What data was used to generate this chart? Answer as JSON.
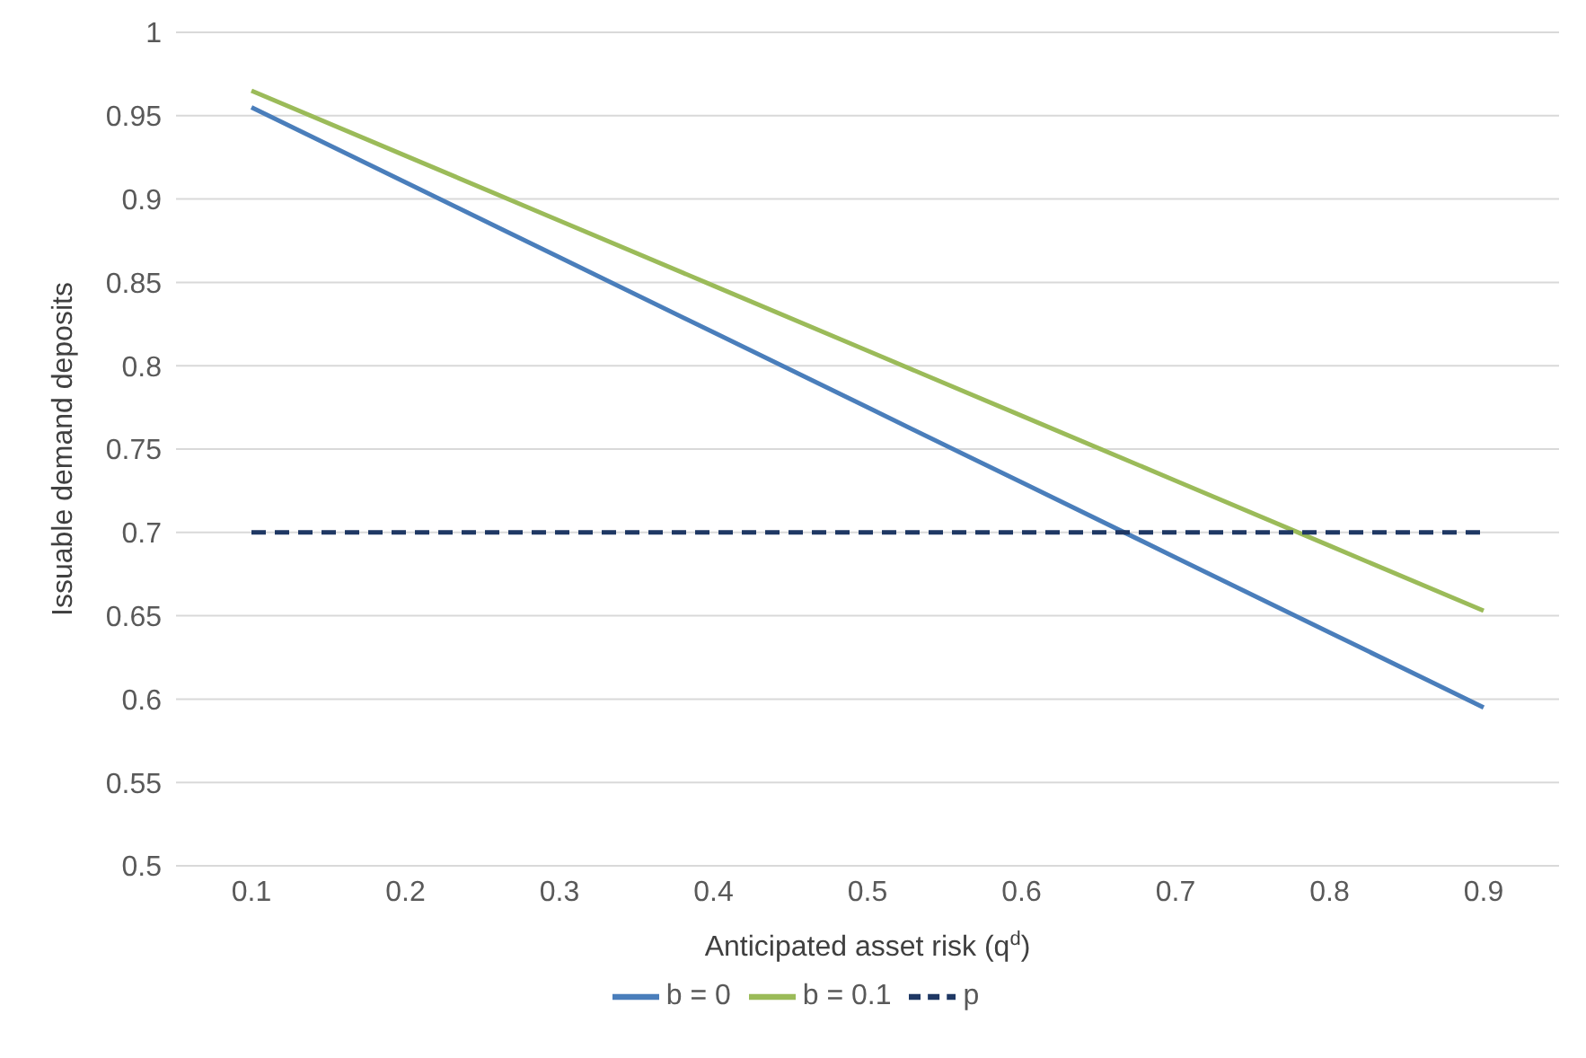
{
  "chart_data": {
    "type": "line",
    "xlabel": "Anticipated asset risk (q$^{d}$)",
    "ylabel": "Issuable demand deposits",
    "categories": [
      "0.1",
      "0.2",
      "0.3",
      "0.4",
      "0.5",
      "0.6",
      "0.7",
      "0.8",
      "0.9"
    ],
    "series": [
      {
        "name": "b = 0",
        "color": "#4a7ebb",
        "line_style": "solid",
        "values": [
          0.955,
          0.91,
          0.865,
          0.82,
          0.775,
          0.73,
          0.685,
          0.64,
          0.595
        ]
      },
      {
        "name": "b = 0.1",
        "color": "#9bbb59",
        "line_style": "solid",
        "values": [
          0.965,
          0.926,
          0.887,
          0.848,
          0.809,
          0.77,
          0.731,
          0.692,
          0.653
        ]
      },
      {
        "name": "p",
        "color": "#1f3864",
        "line_style": "dashed",
        "values": [
          0.7,
          0.7,
          0.7,
          0.7,
          0.7,
          0.7,
          0.7,
          0.7,
          0.7
        ]
      }
    ],
    "ylim": [
      0.5,
      1
    ],
    "yticks": [
      0.5,
      0.55,
      0.6,
      0.65,
      0.7,
      0.75,
      0.8,
      0.85,
      0.9,
      0.95,
      1
    ],
    "grid": "y",
    "legend": "bottom",
    "marker": "none"
  }
}
